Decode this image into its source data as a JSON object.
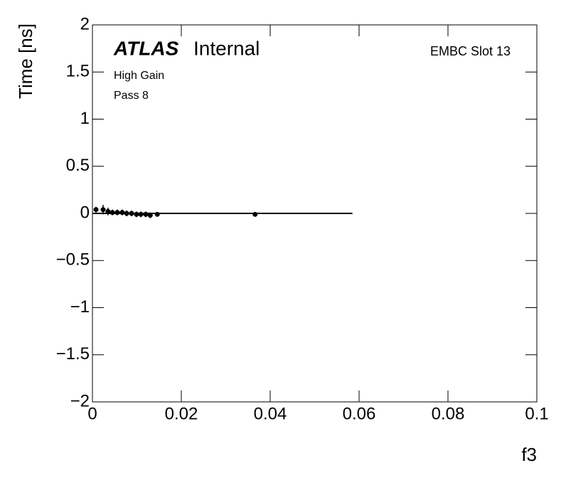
{
  "chart_data": {
    "type": "scatter",
    "title": {
      "experiment": "ATLAS",
      "status": "Internal"
    },
    "label": "EMBC Slot 13",
    "annotations": [
      "High Gain",
      "Pass 8"
    ],
    "xlabel": "f3",
    "ylabel": "Time [ns]",
    "xlim": [
      0,
      0.1
    ],
    "xticks": [
      0,
      0.02,
      0.04,
      0.06,
      0.08,
      0.1
    ],
    "ylim": [
      -2,
      2
    ],
    "yticks": [
      {
        "value": -2,
        "label": "−2"
      },
      {
        "value": -1.5,
        "label": "−1.5"
      },
      {
        "value": -1,
        "label": "−1"
      },
      {
        "value": -0.5,
        "label": "−0.5"
      },
      0,
      0.5,
      1,
      1.5,
      2
    ],
    "color": "#000000",
    "x": [
      0.0008,
      0.0024,
      0.0035,
      0.0045,
      0.0056,
      0.0067,
      0.0077,
      0.0088,
      0.0099,
      0.0109,
      0.012,
      0.013,
      0.0146,
      0.0366
    ],
    "values": [
      0.04,
      0.04,
      0.02,
      0.01,
      0.01,
      0.01,
      0.0,
      0.0,
      -0.01,
      -0.01,
      -0.01,
      -0.02,
      -0.01,
      -0.01
    ],
    "errors": [
      0.03,
      0.05,
      0.04,
      0.03,
      0.03,
      0.03,
      0.03,
      0.03,
      0.03,
      0.03,
      0.03,
      0.03,
      0.02,
      0.01
    ],
    "fit": {
      "x": [
        0,
        0.0585
      ],
      "y": [
        0,
        0
      ]
    }
  }
}
